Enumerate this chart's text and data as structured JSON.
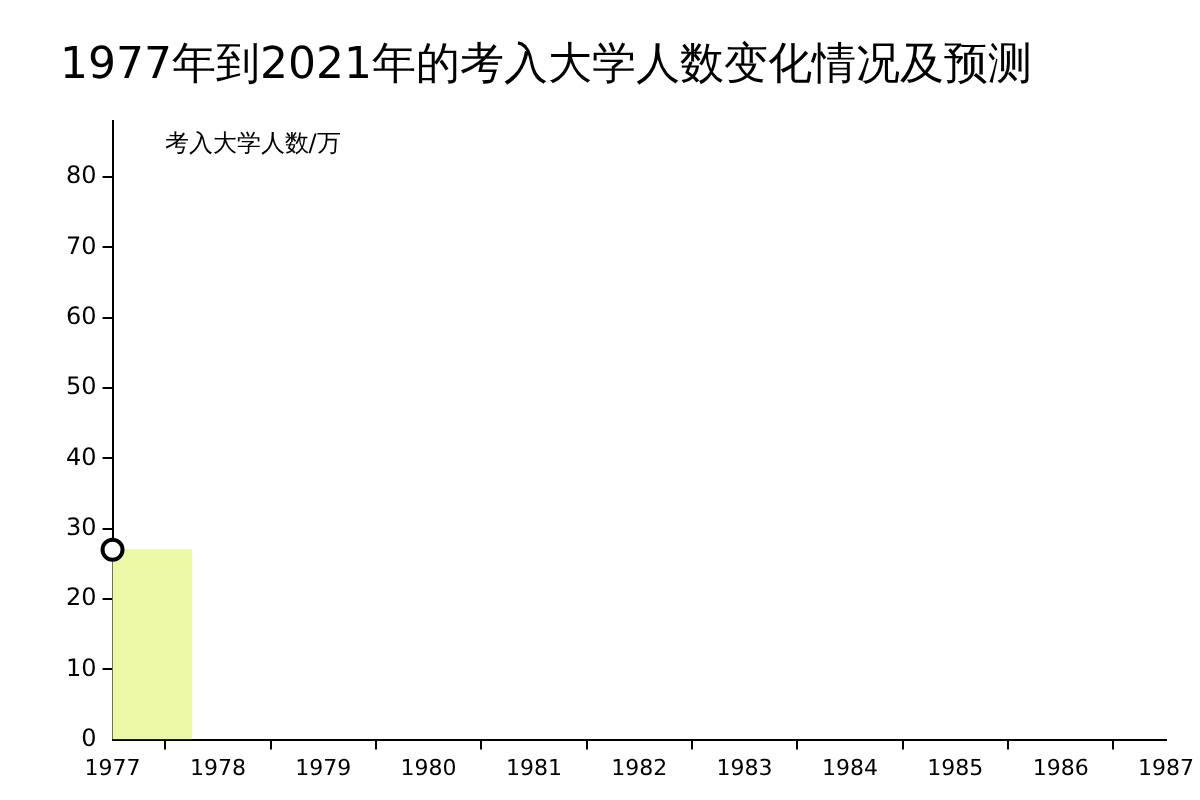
{
  "chart_data": {
    "type": "histogram",
    "title": "1977年到2021年的考入大学人数变化情况及预测",
    "ylabel": "考入大学人数/万",
    "xlim": [
      1977,
      1987
    ],
    "xticks": [
      1977,
      1978,
      1979,
      1980,
      1981,
      1982,
      1983,
      1984,
      1985,
      1986,
      1987
    ],
    "ylim": [
      0,
      88
    ],
    "yticks": [
      0,
      10,
      20,
      30,
      40,
      50,
      60,
      70,
      80
    ],
    "grid": false,
    "legend": false,
    "bins": [
      1977,
      1977.75
    ],
    "values": [
      27
    ],
    "color": "#eef9a7",
    "series": [
      {
        "type": "scatter",
        "x": [
          1977
        ],
        "values": [
          27
        ],
        "color": "#ffffff",
        "marker": "circle"
      }
    ]
  }
}
